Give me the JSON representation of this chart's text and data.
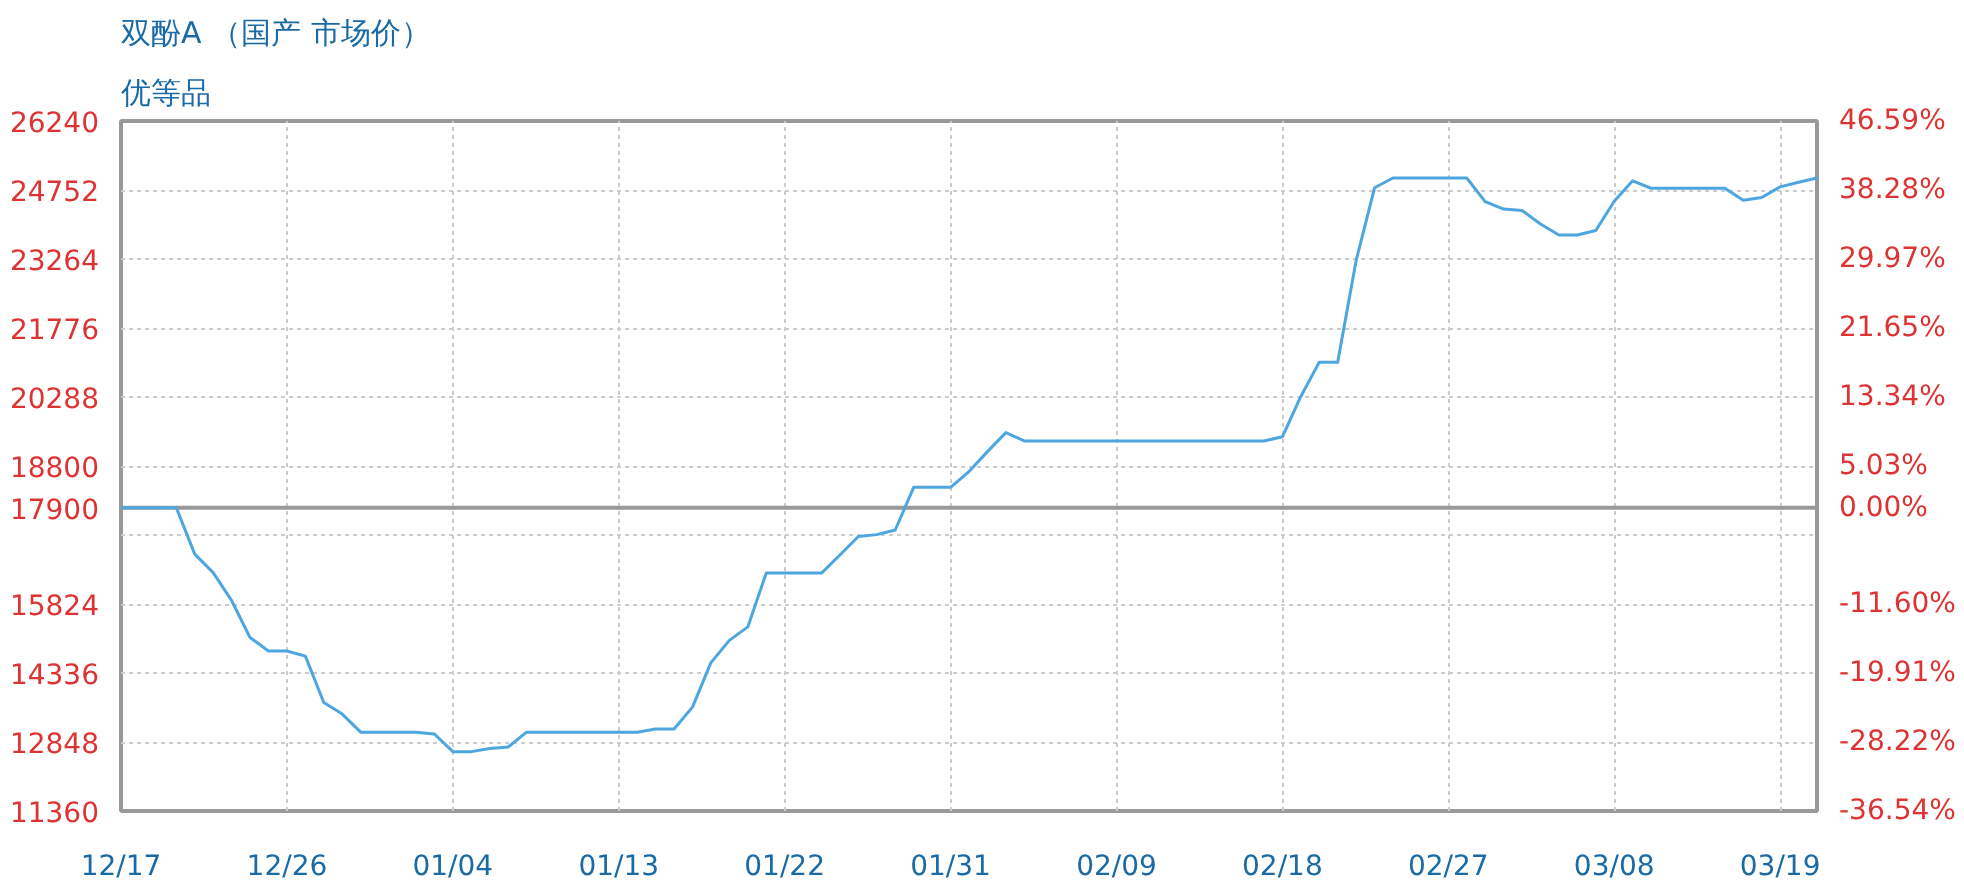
{
  "chart_data": {
    "type": "line",
    "title": "双酚A （国产 市场价）",
    "subtitle": "优等品",
    "categories": [
      "12/17",
      null,
      null,
      null,
      null,
      null,
      null,
      null,
      null,
      "12/26",
      null,
      null,
      null,
      null,
      null,
      null,
      null,
      null,
      "01/04",
      null,
      null,
      null,
      null,
      null,
      null,
      null,
      null,
      "01/13",
      null,
      null,
      null,
      null,
      null,
      null,
      null,
      null,
      "01/22",
      null,
      null,
      null,
      null,
      null,
      null,
      null,
      null,
      "01/31",
      null,
      null,
      null,
      null,
      null,
      null,
      null,
      null,
      "02/09",
      null,
      null,
      null,
      null,
      null,
      null,
      null,
      null,
      "02/18",
      null,
      null,
      null,
      null,
      null,
      null,
      null,
      null,
      "02/27",
      null,
      null,
      null,
      null,
      null,
      null,
      null,
      null,
      "03/08",
      null,
      null,
      null,
      null,
      null,
      null,
      null,
      null,
      "03/19",
      null,
      null
    ],
    "series": [
      {
        "color": "#4da6e0",
        "values": [
          17900,
          17900,
          17900,
          17900,
          16900,
          16500,
          15900,
          15100,
          14810,
          14810,
          14700,
          13700,
          13450,
          13060,
          13060,
          13060,
          13060,
          13020,
          12640,
          12640,
          12710,
          12740,
          13060,
          13060,
          13060,
          13060,
          13060,
          13060,
          13060,
          13130,
          13130,
          13600,
          14560,
          15040,
          15330,
          16490,
          16490,
          16490,
          16490,
          16880,
          17280,
          17320,
          17420,
          18340,
          18340,
          18340,
          18680,
          19110,
          19520,
          19340,
          19340,
          19340,
          19340,
          19340,
          19340,
          19340,
          19340,
          19340,
          19340,
          19340,
          19340,
          19340,
          19340,
          19430,
          20300,
          21040,
          21040,
          23230,
          24800,
          25010,
          25010,
          25010,
          25010,
          25010,
          24500,
          24340,
          24310,
          24020,
          23780,
          23780,
          23880,
          24510,
          24950,
          24790,
          24790,
          24790,
          24790,
          24790,
          24530,
          24590,
          24820,
          24920,
          25010
        ]
      }
    ],
    "ylim": [
      11360,
      26240
    ],
    "yticks": [
      11360,
      12848,
      14336,
      15824,
      {
        "value": 17312,
        "label": null
      },
      17900,
      18800,
      20288,
      21776,
      23264,
      24752,
      26240
    ],
    "y2lim": [
      -36.54,
      46.59
    ],
    "y2ticks": [
      {
        "value": -36.54,
        "label": "-36.54%"
      },
      {
        "value": -28.22,
        "label": "-28.22%"
      },
      {
        "value": -19.91,
        "label": "-19.91%"
      },
      {
        "value": -11.6,
        "label": "-11.60%"
      },
      {
        "value": 0,
        "label": "0.00%"
      },
      {
        "value": 5.03,
        "label": "5.03%"
      },
      {
        "value": 13.34,
        "label": "13.34%"
      },
      {
        "value": 21.65,
        "label": "21.65%"
      },
      {
        "value": 29.97,
        "label": "29.97%"
      },
      {
        "value": 38.28,
        "label": "38.28%"
      },
      {
        "value": 46.59,
        "label": "46.59%"
      }
    ],
    "ref_lines": [
      {
        "axis": "y",
        "value": 17900,
        "color": "#999999"
      }
    ],
    "grid": true,
    "marker": "none",
    "line_style": "solid"
  }
}
